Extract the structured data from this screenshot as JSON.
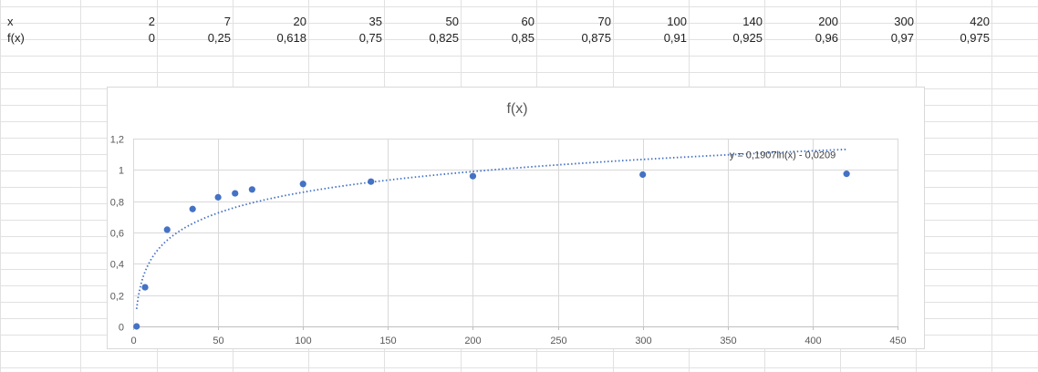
{
  "sheet": {
    "row1_label": "x",
    "row2_label": "f(x)",
    "x_values": [
      "2",
      "7",
      "20",
      "35",
      "50",
      "60",
      "70",
      "100",
      "140",
      "200",
      "300",
      "420"
    ],
    "fx_values": [
      "0",
      "0,25",
      "0,618",
      "0,75",
      "0,825",
      "0,85",
      "0,875",
      "0,91",
      "0,925",
      "0,96",
      "0,97",
      "0,975"
    ]
  },
  "chart_data": {
    "type": "scatter",
    "title": "f(x)",
    "x": [
      2,
      7,
      20,
      35,
      50,
      60,
      70,
      100,
      140,
      200,
      300,
      420
    ],
    "y": [
      0,
      0.25,
      0.618,
      0.75,
      0.825,
      0.85,
      0.875,
      0.91,
      0.925,
      0.96,
      0.97,
      0.975
    ],
    "xlim": [
      0,
      450
    ],
    "ylim": [
      0,
      1.2
    ],
    "x_ticks": [
      "0",
      "50",
      "100",
      "150",
      "200",
      "250",
      "300",
      "350",
      "400",
      "450"
    ],
    "y_ticks": [
      "0",
      "0,2",
      "0,4",
      "0,6",
      "0,8",
      "1",
      "1,2"
    ],
    "grid": true,
    "trendline": {
      "type": "logarithmic",
      "a": 0.1907,
      "b": -0.0209,
      "equation": "y = 0,1907ln(x) - 0,0209"
    },
    "colors": {
      "marker": "#4472c4",
      "grid": "#d9d9d9",
      "axis": "#bfbfbf"
    }
  }
}
